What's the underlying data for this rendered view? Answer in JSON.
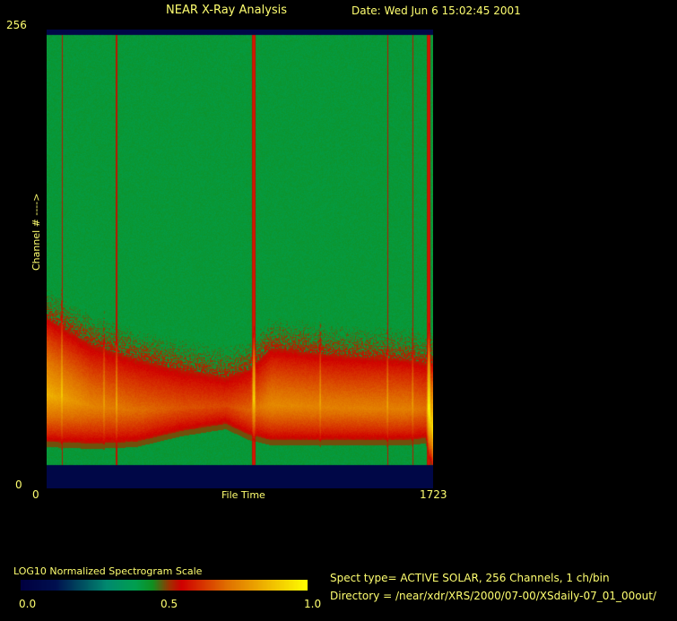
{
  "header": {
    "title": "NEAR X-Ray Analysis",
    "date": "Date: Wed Jun  6 15:02:45 2001"
  },
  "chart_data": {
    "type": "heatmap",
    "title": "NEAR X-Ray Analysis",
    "xlabel": "File Time",
    "ylabel": "Channel # ---->",
    "xlim": [
      0,
      1723
    ],
    "ylim": [
      0,
      256
    ],
    "x_tick_labels": [
      "0",
      "1723"
    ],
    "y_tick_labels": [
      "0",
      "256"
    ],
    "empty_channels": [
      [
        0,
        13
      ],
      [
        253,
        256
      ]
    ],
    "band_profile": [
      {
        "file": 0,
        "upper_channel": 95,
        "lower_channel": 26,
        "peak": 0.85
      },
      {
        "file": 200,
        "upper_channel": 80,
        "lower_channel": 25,
        "peak": 0.76
      },
      {
        "file": 400,
        "upper_channel": 72,
        "lower_channel": 26,
        "peak": 0.72
      },
      {
        "file": 600,
        "upper_channel": 66,
        "lower_channel": 32,
        "peak": 0.68
      },
      {
        "file": 800,
        "upper_channel": 62,
        "lower_channel": 36,
        "peak": 0.66
      },
      {
        "file": 900,
        "upper_channel": 66,
        "lower_channel": 30,
        "peak": 0.7
      },
      {
        "file": 1000,
        "upper_channel": 78,
        "lower_channel": 27,
        "peak": 0.77
      },
      {
        "file": 1300,
        "upper_channel": 74,
        "lower_channel": 27,
        "peak": 0.75
      },
      {
        "file": 1600,
        "upper_channel": 72,
        "lower_channel": 27,
        "peak": 0.75
      },
      {
        "file": 1690,
        "upper_channel": 70,
        "lower_channel": 28,
        "peak": 0.72
      },
      {
        "file": 1723,
        "upper_channel": 70,
        "lower_channel": 10,
        "peak": 0.95
      }
    ],
    "flare_spikes": [
      {
        "file": 68,
        "strength": 0.5
      },
      {
        "file": 256,
        "strength": 0.4
      },
      {
        "file": 312,
        "strength": 0.6
      },
      {
        "file": 924,
        "strength": 1.0
      },
      {
        "file": 1220,
        "strength": 0.4
      },
      {
        "file": 1520,
        "strength": 0.45
      },
      {
        "file": 1632,
        "strength": 0.4
      },
      {
        "file": 1704,
        "strength": 1.0
      }
    ],
    "background_level": 0.43,
    "colorscale": {
      "label": "LOG10 Normalized Spectrogram Scale",
      "ticks": [
        "0.0",
        "0.5",
        "1.0"
      ],
      "range": [
        0,
        1
      ],
      "stops": [
        [
          0.0,
          "#000040"
        ],
        [
          0.12,
          "#001050"
        ],
        [
          0.3,
          "#008a70"
        ],
        [
          0.4,
          "#00a050"
        ],
        [
          0.46,
          "#109020"
        ],
        [
          0.52,
          "#a03000"
        ],
        [
          0.56,
          "#d00000"
        ],
        [
          0.72,
          "#e07000"
        ],
        [
          1.0,
          "#ffff00"
        ]
      ]
    }
  },
  "info": {
    "spect_type": "Spect type= ACTIVE SOLAR,  256 Channels,        1 ch/bin",
    "directory": "Directory = /near/xdr/XRS/2000/07-00/XSdaily-07_01_00out/"
  }
}
